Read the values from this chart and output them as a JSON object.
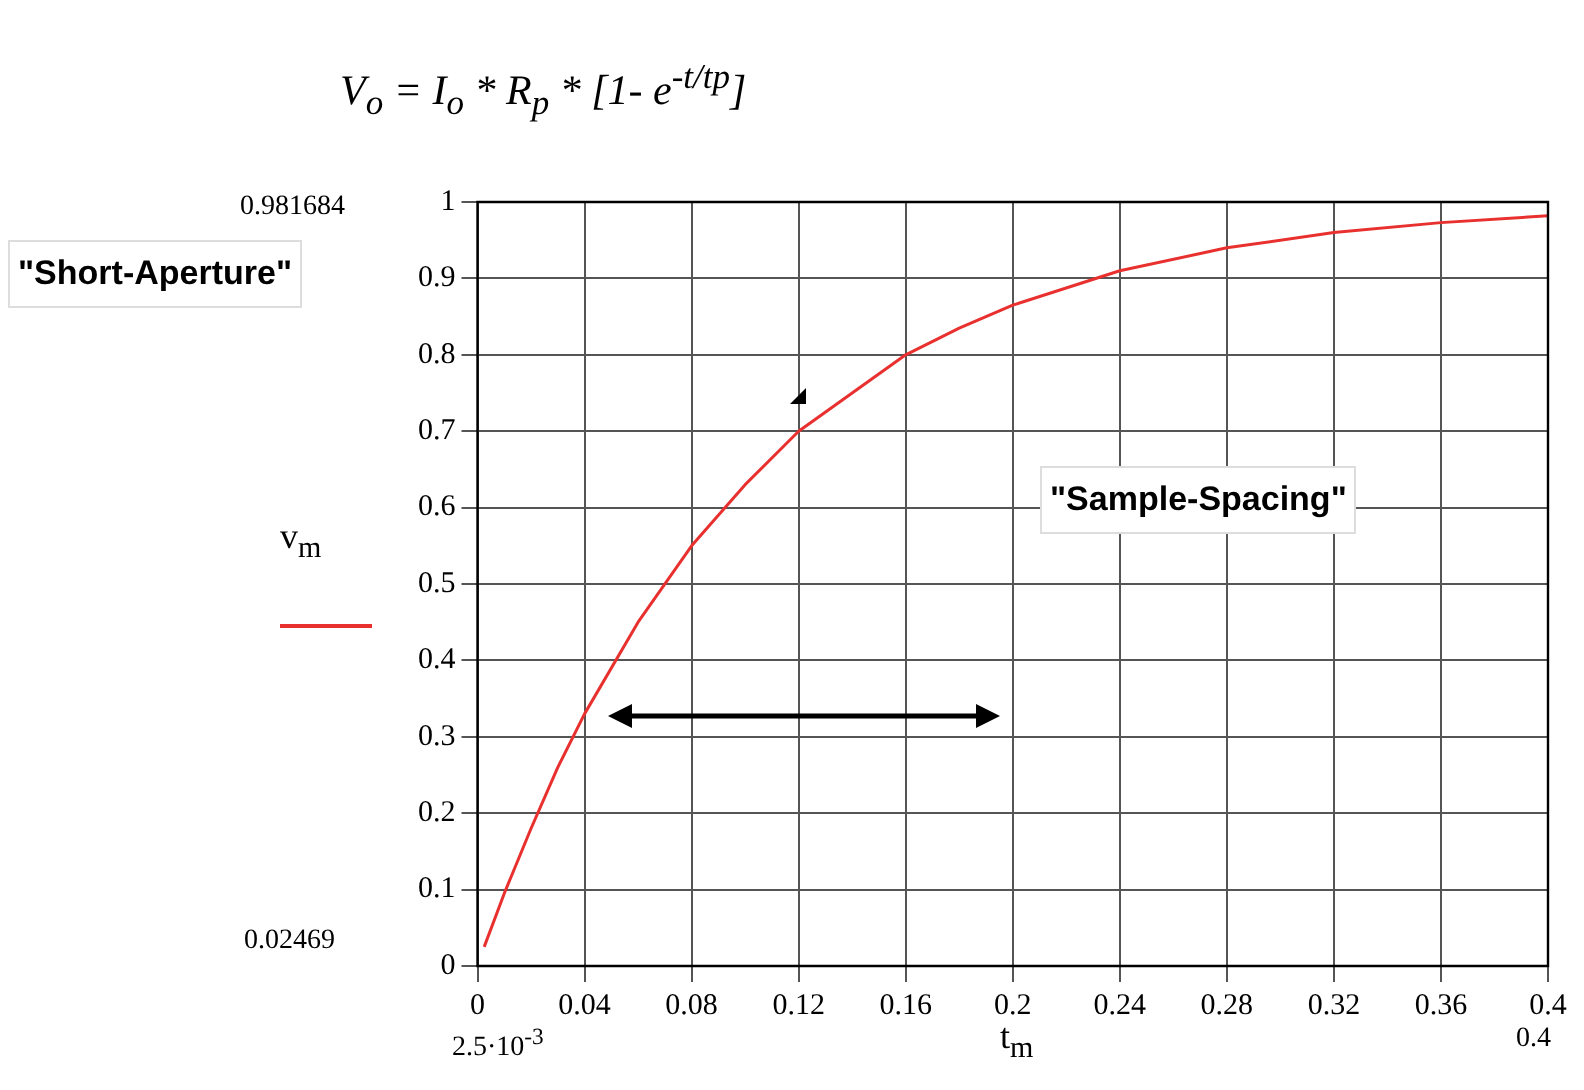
{
  "chart_data": {
    "type": "line",
    "title": "V$_{o}$ = I$_{o}$ * R$_{p}$ * [1- e$^{-t/tp}$]",
    "xlabel": "t$_{m}$",
    "ylabel": "v$_{m}$",
    "x": [
      0.0025,
      0.01,
      0.02,
      0.03,
      0.04,
      0.06,
      0.08,
      0.1,
      0.12,
      0.14,
      0.16,
      0.18,
      0.2,
      0.24,
      0.28,
      0.32,
      0.36,
      0.4
    ],
    "series": [
      {
        "color": "#e8312f",
        "values": [
          0.025,
          0.095,
          0.18,
          0.26,
          0.33,
          0.45,
          0.55,
          0.63,
          0.7,
          0.75,
          0.8,
          0.835,
          0.865,
          0.91,
          0.94,
          0.96,
          0.973,
          0.982
        ]
      }
    ],
    "xlim": [
      0,
      0.4
    ],
    "xticks": [
      0,
      0.04,
      0.08,
      0.12,
      0.16,
      0.2,
      0.24,
      0.28,
      0.32,
      0.36,
      0.4
    ],
    "ylim": [
      0,
      1
    ],
    "yticks": [
      0,
      0.1,
      0.2,
      0.3,
      0.4,
      0.5,
      0.6,
      0.7,
      0.8,
      0.9,
      1
    ],
    "grid": true,
    "legend": false,
    "marker": "none",
    "line_style": "solid",
    "annotations": [
      "0.981684",
      "0.02469",
      "2.5·10$^{-3}$",
      "0.4",
      "\"Short-Aperture\"",
      "\"Sample-Spacing\""
    ]
  }
}
